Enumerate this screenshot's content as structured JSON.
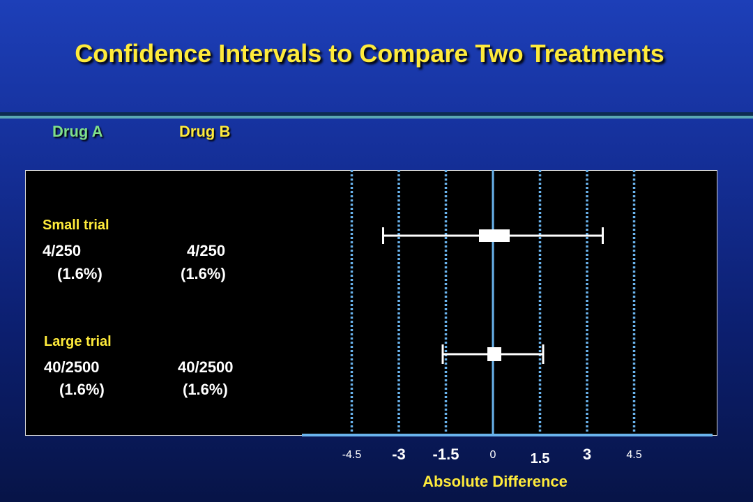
{
  "title": "Confidence Intervals to Compare Two Treatments",
  "headers": {
    "drug_a": "Drug A",
    "drug_b": "Drug B"
  },
  "trials": [
    {
      "label": "Small trial",
      "drug_a_count": "4/250",
      "drug_a_pct": "(1.6%)",
      "drug_b_count": "4/250",
      "drug_b_pct": "(1.6%)"
    },
    {
      "label": "Large trial",
      "drug_a_count": "40/2500",
      "drug_a_pct": "(1.6%)",
      "drug_b_count": "40/2500",
      "drug_b_pct": "(1.6%)"
    }
  ],
  "chart_data": {
    "type": "forest",
    "xlabel": "Absolute Difference",
    "xlim": [
      -5,
      6
    ],
    "x_ticks": [
      {
        "value": -4.5,
        "label": "-4.5",
        "style": "small"
      },
      {
        "value": -3,
        "label": "-3",
        "style": "large"
      },
      {
        "value": -1.5,
        "label": "-1.5",
        "style": "large"
      },
      {
        "value": 0,
        "label": "0",
        "style": "small"
      },
      {
        "value": 1.5,
        "label": "1.5",
        "style": "medium"
      },
      {
        "value": 3,
        "label": "3",
        "style": "large"
      },
      {
        "value": 4.5,
        "label": "4.5",
        "style": "small"
      }
    ],
    "series": [
      {
        "name": "Small trial",
        "estimate": 0,
        "ci_low": -3.5,
        "ci_high": 3.5
      },
      {
        "name": "Large trial",
        "estimate": 0,
        "ci_low": -1.6,
        "ci_high": 1.6
      }
    ],
    "colors": {
      "reference_line": "#6ab4ee",
      "gridline": "#6ab4ee",
      "interval": "#ffffff",
      "axis_label": "#ffeb3b"
    }
  }
}
